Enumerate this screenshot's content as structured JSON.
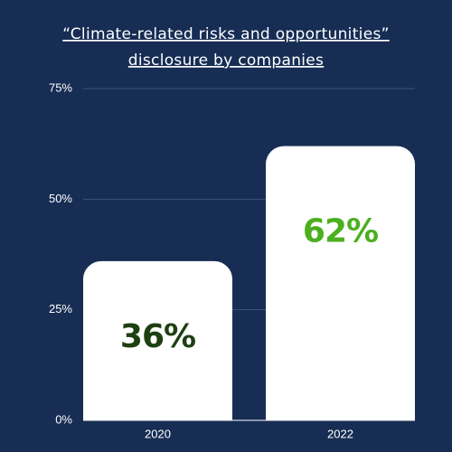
{
  "chart_data": {
    "type": "bar",
    "title": [
      "“Climate-related risks and opportunities”",
      "disclosure by companies"
    ],
    "categories": [
      "2020",
      "2022"
    ],
    "values": [
      36,
      62
    ],
    "value_labels": [
      "36%",
      "62%"
    ],
    "value_label_colors": [
      "#1d4012",
      "#4caf1f"
    ],
    "color": "#ffffff",
    "ylim": [
      0,
      75
    ],
    "yticks": [
      {
        "value": 0,
        "label": "0%"
      },
      {
        "value": 25,
        "label": "25%"
      },
      {
        "value": 50,
        "label": "50%"
      },
      {
        "value": 75,
        "label": "75%"
      }
    ],
    "grid": true
  }
}
